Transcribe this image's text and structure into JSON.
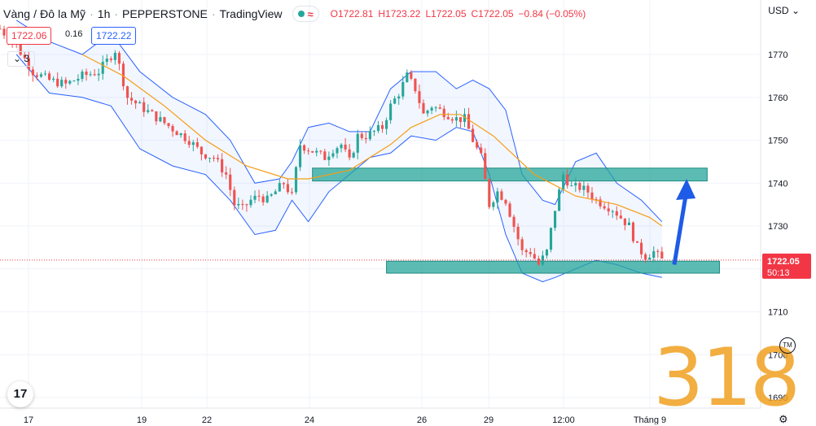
{
  "header": {
    "symbol": "Vàng / Đô la Mỹ",
    "interval": "1h",
    "broker": "PEPPERSTONE",
    "source": "TradingView",
    "pill_icon": "≈",
    "ohlc": {
      "o": "O1722.81",
      "h": "H1723.22",
      "l": "L1722.05",
      "c": "C1722.05",
      "chg": "−0.84 (−0.05%)"
    }
  },
  "trade": {
    "sell": "1722.06",
    "spread": "0.16",
    "buy": "1722.22"
  },
  "study_count": "3",
  "currency": "USD",
  "price_tag": {
    "price": "1722.05",
    "countdown": "50:13"
  },
  "logo_text": "17",
  "tm_text": "TM",
  "watermark": "318",
  "icons": {
    "logo": "tradingview-logo-icon",
    "settings": "gear-icon",
    "tm": "trademark-icon"
  },
  "colors": {
    "up": "#26a69a",
    "down": "#ef5350",
    "band": "#2962ff",
    "ma": "#f59d15",
    "zone": "#26a69a",
    "arrow": "#1e5be6",
    "pricetag": "#f23645"
  },
  "chart_data": {
    "type": "candlestick",
    "ylim": [
      1688,
      1780
    ],
    "y_ticks": [
      1770,
      1760,
      1750,
      1740,
      1730,
      1720,
      1710,
      1700,
      1690
    ],
    "x_ticks": [
      "17",
      "19",
      "22",
      "24",
      "26",
      "29",
      "12:00",
      "Tháng 9"
    ],
    "last_price": 1722.05,
    "series": [
      {
        "name": "price",
        "close_path": [
          [
            0,
            1776
          ],
          [
            4,
            1772
          ],
          [
            8,
            1766
          ],
          [
            12,
            1764
          ],
          [
            16,
            1763
          ],
          [
            20,
            1765
          ],
          [
            24,
            1766
          ],
          [
            28,
            1771
          ],
          [
            31,
            1760
          ],
          [
            34,
            1758
          ],
          [
            37,
            1756
          ],
          [
            40,
            1754
          ],
          [
            43,
            1752
          ],
          [
            46,
            1750
          ],
          [
            49,
            1747
          ],
          [
            52,
            1746
          ],
          [
            55,
            1742
          ],
          [
            57,
            1735
          ],
          [
            59,
            1734
          ],
          [
            61,
            1736
          ],
          [
            63,
            1737
          ],
          [
            65,
            1736
          ],
          [
            67,
            1738
          ],
          [
            69,
            1740
          ],
          [
            71,
            1737
          ],
          [
            73,
            1749
          ],
          [
            75,
            1748
          ],
          [
            77,
            1747
          ],
          [
            79,
            1746
          ],
          [
            81,
            1748
          ],
          [
            83,
            1749
          ],
          [
            85,
            1745
          ],
          [
            87,
            1751
          ],
          [
            89,
            1751
          ],
          [
            91,
            1752
          ],
          [
            93,
            1753
          ],
          [
            95,
            1758
          ],
          [
            97,
            1761
          ],
          [
            99,
            1765
          ],
          [
            101,
            1762
          ],
          [
            103,
            1756
          ],
          [
            105,
            1758
          ],
          [
            107,
            1757
          ],
          [
            109,
            1756
          ],
          [
            111,
            1755
          ],
          [
            113,
            1755
          ],
          [
            115,
            1750
          ],
          [
            117,
            1746
          ],
          [
            119,
            1735
          ],
          [
            121,
            1738
          ],
          [
            123,
            1736
          ],
          [
            125,
            1730
          ],
          [
            127,
            1724
          ],
          [
            129,
            1724
          ],
          [
            131,
            1721
          ],
          [
            133,
            1724
          ],
          [
            135,
            1734
          ],
          [
            137,
            1742
          ],
          [
            139,
            1739
          ],
          [
            141,
            1739
          ],
          [
            143,
            1738
          ],
          [
            145,
            1736
          ],
          [
            147,
            1735
          ],
          [
            149,
            1734
          ],
          [
            151,
            1732
          ],
          [
            153,
            1730
          ],
          [
            155,
            1725
          ],
          [
            157,
            1723
          ],
          [
            159,
            1724
          ],
          [
            161,
            1722.05
          ]
        ]
      },
      {
        "name": "MA",
        "path": [
          [
            20,
            1770
          ],
          [
            30,
            1765
          ],
          [
            40,
            1758
          ],
          [
            50,
            1750
          ],
          [
            60,
            1744
          ],
          [
            70,
            1741
          ],
          [
            75,
            1741
          ],
          [
            85,
            1743
          ],
          [
            95,
            1749
          ],
          [
            100,
            1753
          ],
          [
            107,
            1756
          ],
          [
            112,
            1756
          ],
          [
            120,
            1751
          ],
          [
            130,
            1742
          ],
          [
            140,
            1737
          ],
          [
            150,
            1735
          ],
          [
            158,
            1732
          ],
          [
            161,
            1730
          ]
        ]
      },
      {
        "name": "Bollinger upper",
        "path": [
          [
            4,
            1778
          ],
          [
            12,
            1773
          ],
          [
            20,
            1770
          ],
          [
            27,
            1775
          ],
          [
            34,
            1766
          ],
          [
            42,
            1760
          ],
          [
            50,
            1756
          ],
          [
            56,
            1750
          ],
          [
            62,
            1740
          ],
          [
            68,
            1741
          ],
          [
            71,
            1745
          ],
          [
            75,
            1753
          ],
          [
            80,
            1754
          ],
          [
            85,
            1752
          ],
          [
            90,
            1752
          ],
          [
            95,
            1762
          ],
          [
            100,
            1766
          ],
          [
            106,
            1766
          ],
          [
            111,
            1762
          ],
          [
            115,
            1764
          ],
          [
            119,
            1762
          ],
          [
            123,
            1757
          ],
          [
            127,
            1742
          ],
          [
            132,
            1736
          ],
          [
            135,
            1735
          ],
          [
            140,
            1745
          ],
          [
            145,
            1747
          ],
          [
            150,
            1740
          ],
          [
            156,
            1736
          ],
          [
            161,
            1731
          ]
        ]
      },
      {
        "name": "Bollinger lower",
        "path": [
          [
            4,
            1770
          ],
          [
            12,
            1761
          ],
          [
            20,
            1760
          ],
          [
            27,
            1758
          ],
          [
            34,
            1748
          ],
          [
            42,
            1744
          ],
          [
            50,
            1742
          ],
          [
            56,
            1736
          ],
          [
            62,
            1728
          ],
          [
            67,
            1729
          ],
          [
            71,
            1736
          ],
          [
            75,
            1731
          ],
          [
            80,
            1738
          ],
          [
            85,
            1742
          ],
          [
            90,
            1746
          ],
          [
            95,
            1747
          ],
          [
            100,
            1751
          ],
          [
            106,
            1750
          ],
          [
            111,
            1753
          ],
          [
            115,
            1752
          ],
          [
            119,
            1742
          ],
          [
            123,
            1728
          ],
          [
            127,
            1719
          ],
          [
            132,
            1717
          ],
          [
            135,
            1718
          ],
          [
            140,
            1720
          ],
          [
            145,
            1722
          ],
          [
            150,
            1721
          ],
          [
            156,
            1719
          ],
          [
            161,
            1718
          ]
        ]
      }
    ],
    "zones": [
      {
        "x0": 76,
        "x1": 172,
        "y0": 1740.5,
        "y1": 1743.5
      },
      {
        "x0": 94,
        "x1": 175,
        "y0": 1719,
        "y1": 1721.8
      }
    ],
    "arrow": {
      "x0": 164,
      "y0": 1721,
      "x1": 167,
      "y1": 1741
    }
  }
}
